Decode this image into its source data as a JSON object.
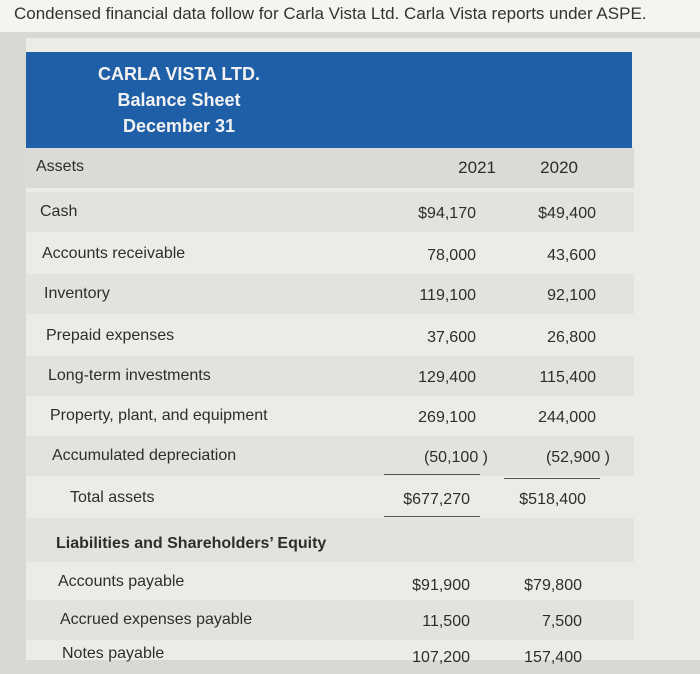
{
  "intro_text": "Condensed financial data follow for Carla Vista Ltd. Carla Vista reports under ASPE.",
  "company": "CARLA VISTA LTD.",
  "statement": "Balance Sheet",
  "date": "December 31",
  "columns": {
    "label": "Assets",
    "y1": "2021",
    "y2": "2020"
  },
  "rows": [
    {
      "label": "Cash",
      "y1": "$94,170",
      "y2": "$49,400"
    },
    {
      "label": "Accounts receivable",
      "y1": "78,000",
      "y2": "43,600"
    },
    {
      "label": "Inventory",
      "y1": "119,100",
      "y2": "92,100"
    },
    {
      "label": "Prepaid expenses",
      "y1": "37,600",
      "y2": "26,800"
    },
    {
      "label": "Long-term investments",
      "y1": "129,400",
      "y2": "115,400"
    },
    {
      "label": "Property, plant, and equipment",
      "y1": "269,100",
      "y2": "244,000"
    },
    {
      "label": "Accumulated depreciation",
      "y1": "(50,100 )",
      "y2": "(52,900 )"
    },
    {
      "label": "Total assets",
      "y1": "$677,270",
      "y2": "$518,400"
    }
  ],
  "liab_header": "Liabilities and Shareholders’ Equity",
  "liab_rows": [
    {
      "label": "Accounts payable",
      "y1": "$91,900",
      "y2": "$79,800"
    },
    {
      "label": "Accrued expenses payable",
      "y1": "11,500",
      "y2": "7,500"
    },
    {
      "label": "Notes payable",
      "y1": "107,200",
      "y2": "157,400"
    }
  ]
}
